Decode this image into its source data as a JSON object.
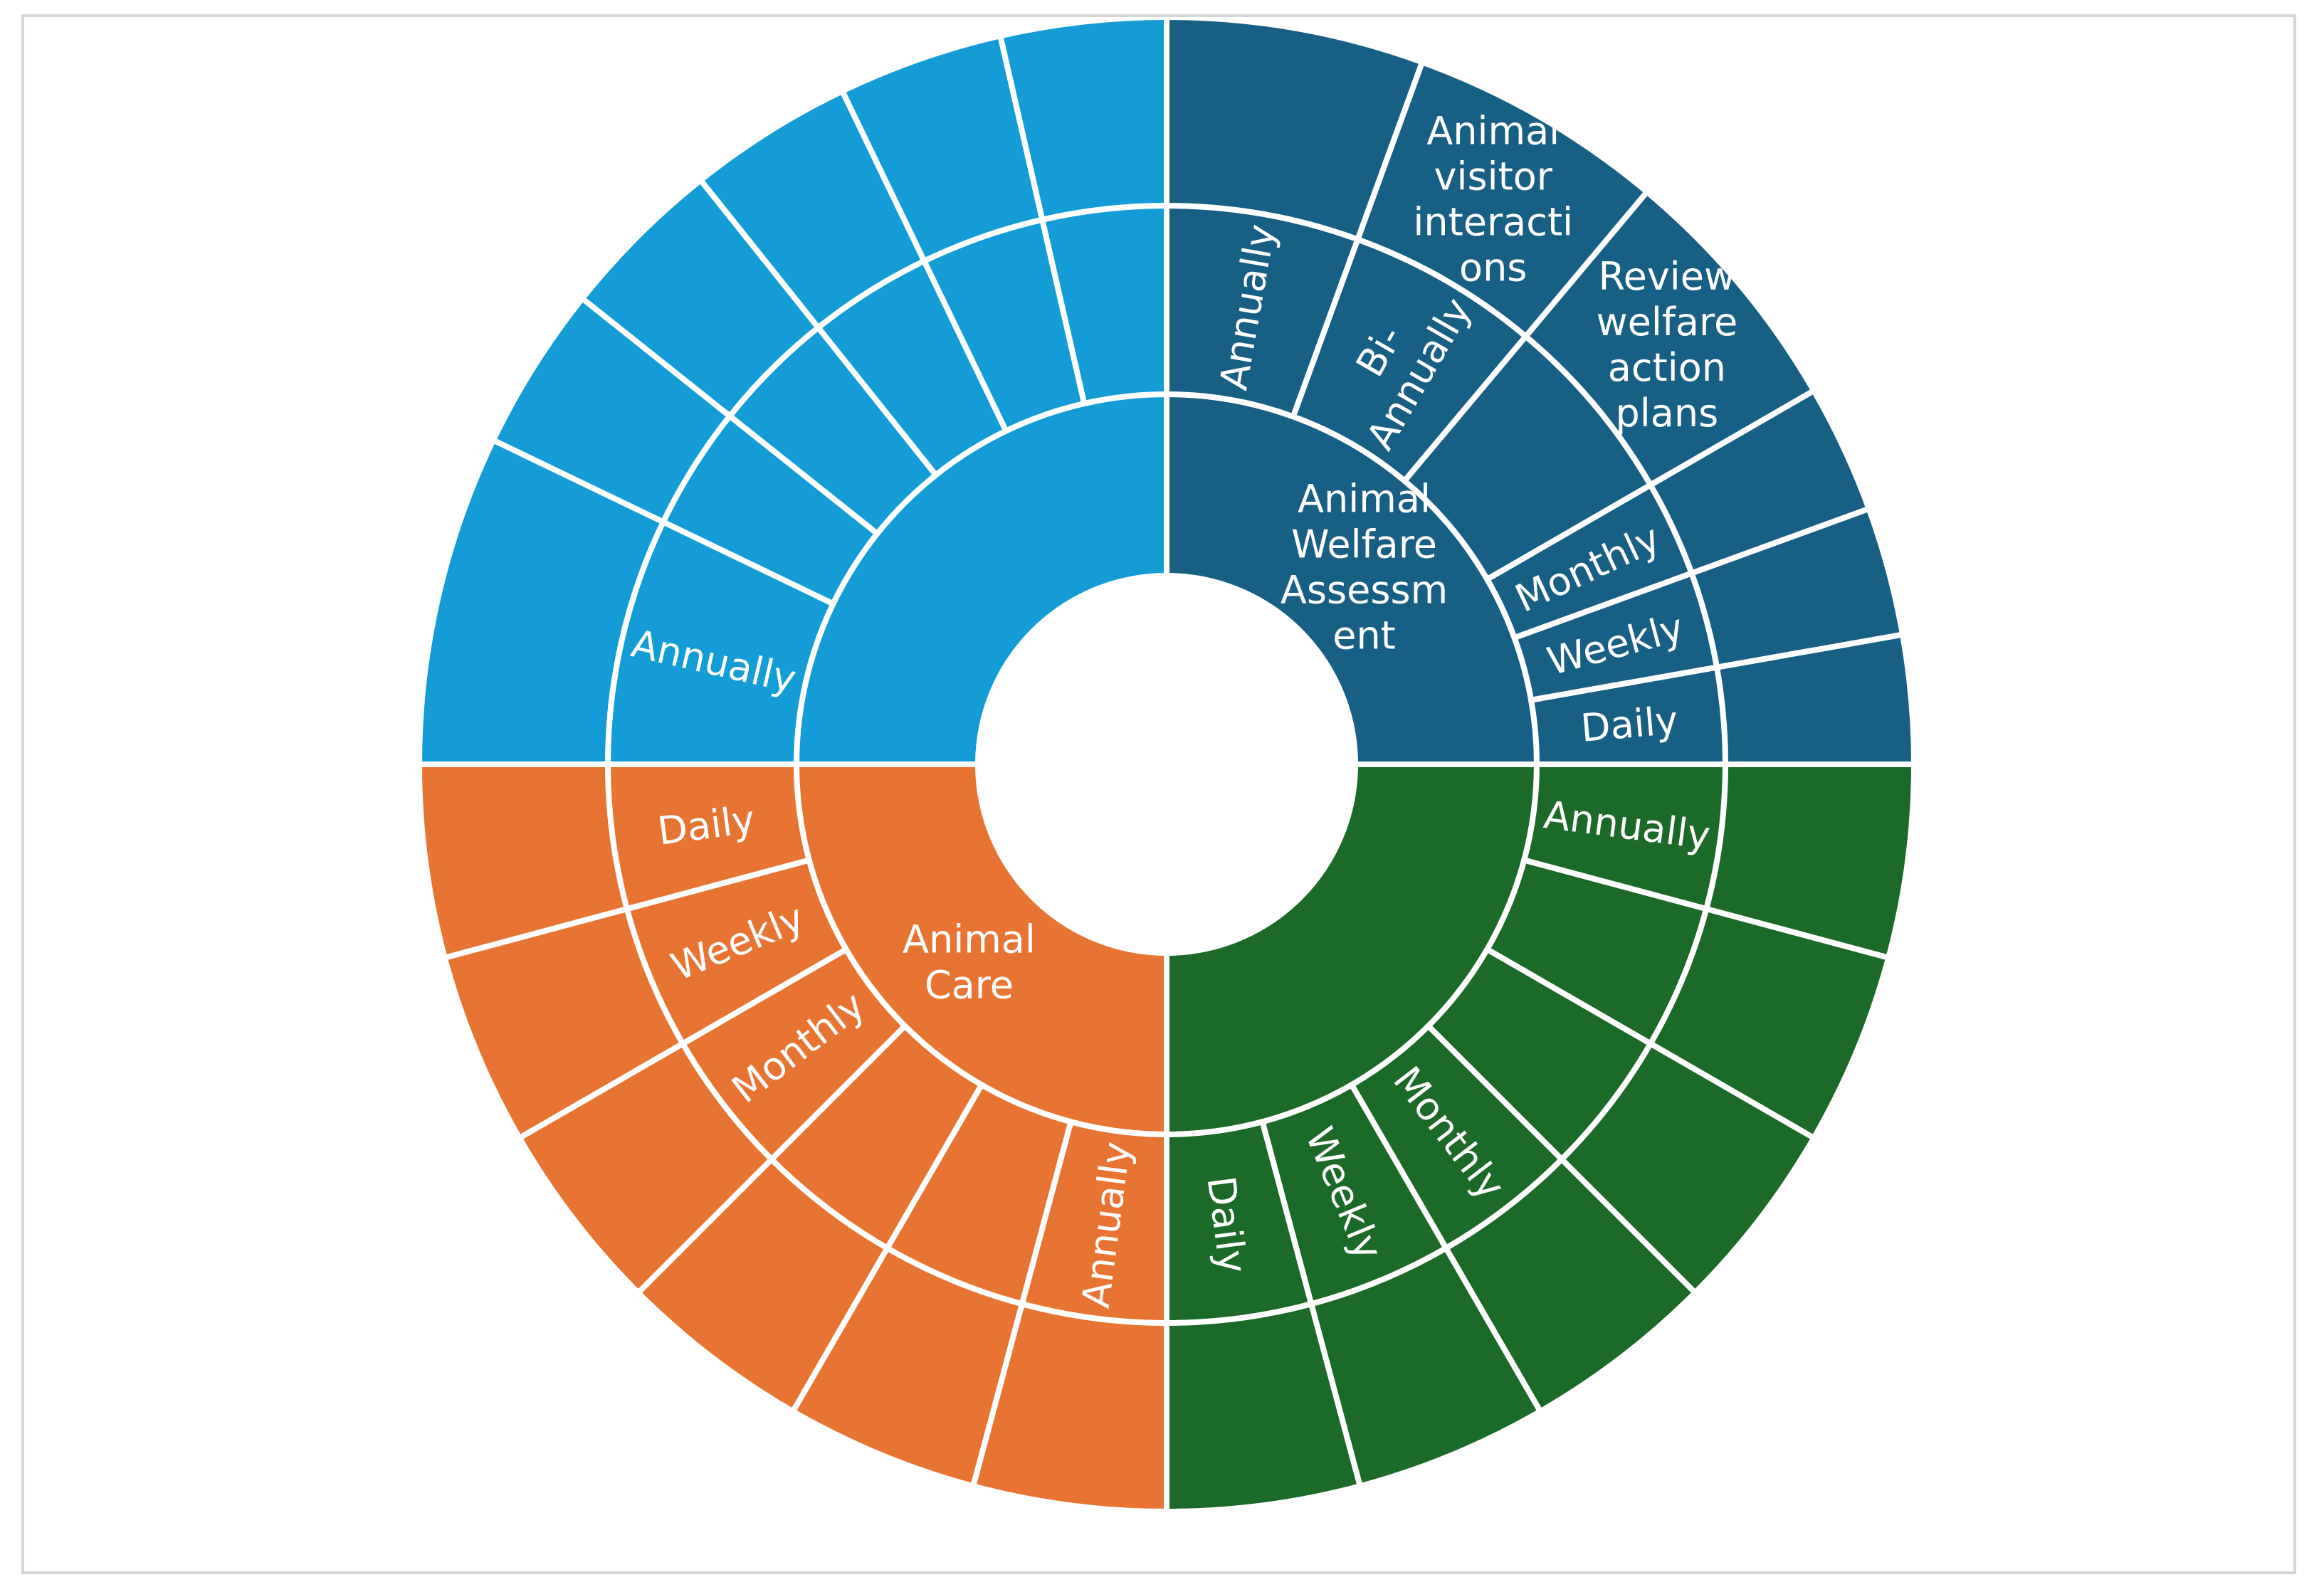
{
  "chart_data": {
    "type": "sunburst",
    "title": "",
    "groups": [
      {
        "name": "Animal Welfare Assessment",
        "label_lines": [
          "Animal",
          "Welfare",
          "Assessm",
          "ent"
        ],
        "color": "#175F84",
        "children": [
          {
            "name": "Annually",
            "label_lines": [
              "Annually"
            ],
            "weight": 2,
            "children": [
              {
                "name": "",
                "weight": 2
              }
            ]
          },
          {
            "name": "Bi-Annually",
            "label_lines": [
              "Bi-",
              "Annually"
            ],
            "weight": 2,
            "children": [
              {
                "name": "Animal visitor interactions",
                "label_lines": [
                  "Animal",
                  "visitor",
                  "interacti",
                  "ons"
                ],
                "weight": 2
              }
            ]
          },
          {
            "name": "",
            "weight": 2,
            "children": [
              {
                "name": "Review welfare action plans",
                "label_lines": [
                  "Review",
                  "welfare",
                  "action",
                  "plans"
                ],
                "weight": 2
              }
            ]
          },
          {
            "name": "Monthly",
            "label_lines": [
              "Monthly"
            ],
            "weight": 1,
            "children": [
              {
                "name": "",
                "weight": 1
              }
            ]
          },
          {
            "name": "Weekly",
            "label_lines": [
              "Weekly"
            ],
            "weight": 1,
            "children": [
              {
                "name": "",
                "weight": 1
              }
            ]
          },
          {
            "name": "Daily",
            "label_lines": [
              "Daily"
            ],
            "weight": 1,
            "children": [
              {
                "name": "",
                "weight": 1
              }
            ]
          }
        ]
      },
      {
        "name": "",
        "color": "#1C6A27",
        "children": [
          {
            "name": "Annually",
            "label_lines": [
              "Annually"
            ],
            "weight": 1,
            "children": [
              {
                "name": "",
                "weight": 1
              }
            ]
          },
          {
            "name": "",
            "weight": 1,
            "children": [
              {
                "name": "",
                "weight": 1
              }
            ]
          },
          {
            "name": "",
            "weight": 1,
            "children": [
              {
                "name": "",
                "weight": 1
              }
            ]
          },
          {
            "name": "Monthly",
            "label_lines": [
              "Monthly"
            ],
            "weight": 1,
            "children": [
              {
                "name": "",
                "weight": 1
              }
            ]
          },
          {
            "name": "Weekly",
            "label_lines": [
              "Weekly"
            ],
            "weight": 1,
            "children": [
              {
                "name": "",
                "weight": 1
              }
            ]
          },
          {
            "name": "Daily",
            "label_lines": [
              "Daily"
            ],
            "weight": 1,
            "children": [
              {
                "name": "",
                "weight": 1
              }
            ]
          }
        ]
      },
      {
        "name": "Animal Care",
        "label_lines": [
          "Animal",
          "Care"
        ],
        "color": "#E87433",
        "children": [
          {
            "name": "Annually",
            "label_lines": [
              "Annually"
            ],
            "weight": 1,
            "children": [
              {
                "name": "",
                "weight": 1
              }
            ]
          },
          {
            "name": "",
            "weight": 1,
            "children": [
              {
                "name": "",
                "weight": 1
              }
            ]
          },
          {
            "name": "",
            "weight": 1,
            "children": [
              {
                "name": "",
                "weight": 1
              }
            ]
          },
          {
            "name": "Monthly",
            "label_lines": [
              "Monthly"
            ],
            "weight": 1,
            "children": [
              {
                "name": "",
                "weight": 1
              }
            ]
          },
          {
            "name": "Weekly",
            "label_lines": [
              "Weekly"
            ],
            "weight": 1,
            "children": [
              {
                "name": "",
                "weight": 1
              }
            ]
          },
          {
            "name": "Daily",
            "label_lines": [
              "Daily"
            ],
            "weight": 1,
            "children": [
              {
                "name": "",
                "weight": 1
              }
            ]
          }
        ]
      },
      {
        "name": "",
        "color": "#139CD6",
        "children": [
          {
            "name": "Annually",
            "label_lines": [
              "Annually"
            ],
            "weight": 2,
            "children": [
              {
                "name": "",
                "weight": 2
              }
            ]
          },
          {
            "name": "",
            "weight": 1,
            "children": [
              {
                "name": "",
                "weight": 1
              }
            ]
          },
          {
            "name": "",
            "weight": 1,
            "children": [
              {
                "name": "",
                "weight": 1
              }
            ]
          },
          {
            "name": "",
            "weight": 1,
            "children": [
              {
                "name": "",
                "weight": 1
              }
            ]
          },
          {
            "name": "",
            "weight": 1,
            "children": [
              {
                "name": "",
                "weight": 1
              }
            ]
          },
          {
            "name": "",
            "weight": 1,
            "children": [
              {
                "name": "",
                "weight": 1
              }
            ]
          }
        ]
      }
    ]
  }
}
